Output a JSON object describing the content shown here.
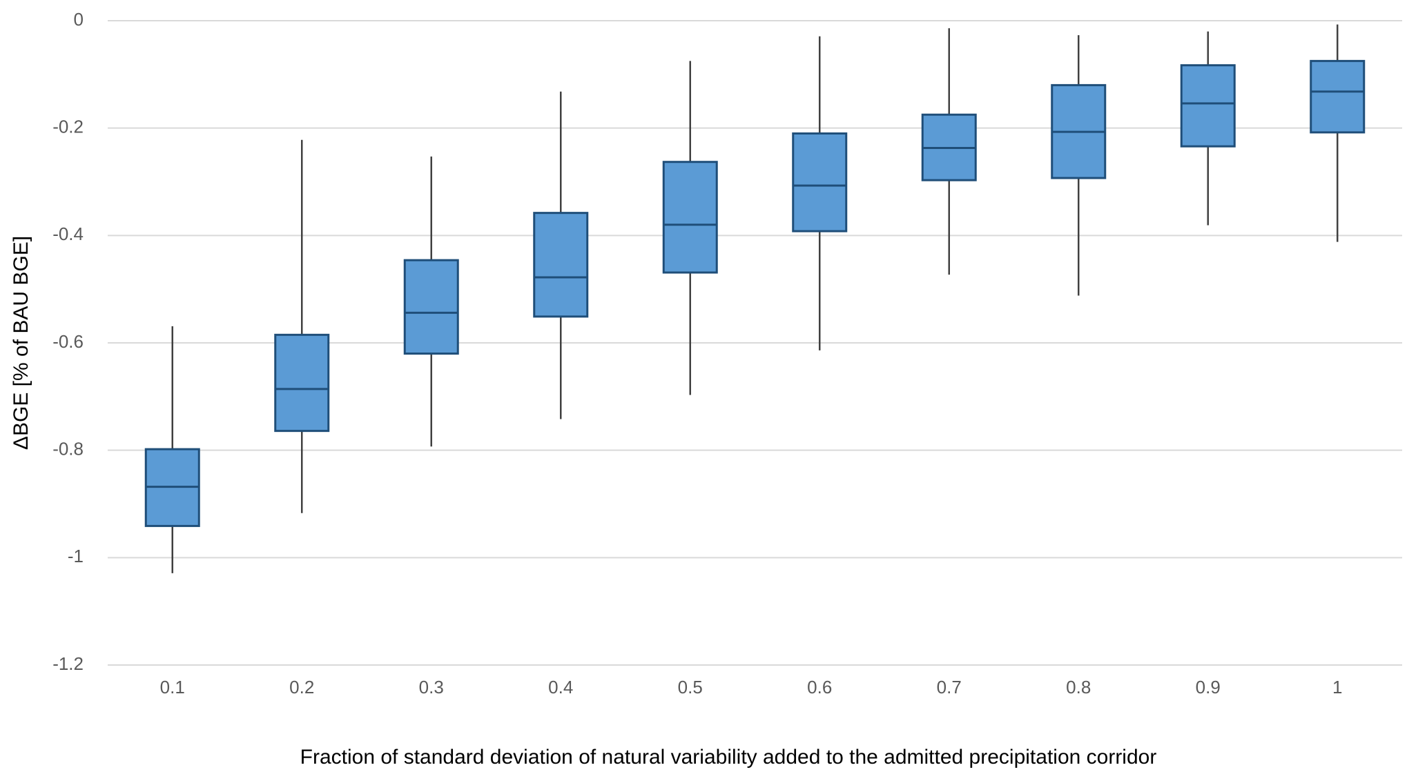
{
  "chart_data": {
    "type": "box",
    "x_label": "Fraction of standard deviation of natural variability added to the admitted precipitation corridor",
    "y_label": "ΔBGE [% of BAU BGE]",
    "categories": [
      "0.1",
      "0.2",
      "0.3",
      "0.4",
      "0.5",
      "0.6",
      "0.7",
      "0.8",
      "0.9",
      "1"
    ],
    "boxes": [
      {
        "whislo": -1.029,
        "q1": -0.941,
        "med": -0.868,
        "q3": -0.798,
        "whishi": -0.569
      },
      {
        "whislo": -0.917,
        "q1": -0.764,
        "med": -0.686,
        "q3": -0.585,
        "whishi": -0.222
      },
      {
        "whislo": -0.793,
        "q1": -0.62,
        "med": -0.544,
        "q3": -0.446,
        "whishi": -0.253
      },
      {
        "whislo": -0.742,
        "q1": -0.551,
        "med": -0.478,
        "q3": -0.358,
        "whishi": -0.132
      },
      {
        "whislo": -0.697,
        "q1": -0.469,
        "med": -0.38,
        "q3": -0.263,
        "whishi": -0.075
      },
      {
        "whislo": -0.614,
        "q1": -0.392,
        "med": -0.307,
        "q3": -0.21,
        "whishi": -0.029
      },
      {
        "whislo": -0.473,
        "q1": -0.297,
        "med": -0.237,
        "q3": -0.175,
        "whishi": -0.014
      },
      {
        "whislo": -0.512,
        "q1": -0.293,
        "med": -0.207,
        "q3": -0.12,
        "whishi": -0.027
      },
      {
        "whislo": -0.381,
        "q1": -0.234,
        "med": -0.154,
        "q3": -0.083,
        "whishi": -0.02
      },
      {
        "whislo": -0.412,
        "q1": -0.208,
        "med": -0.132,
        "q3": -0.075,
        "whishi": -0.007
      }
    ],
    "color": "#5b9bd5",
    "edge_color": "#1f4e79",
    "whisker_color": "#404040",
    "ylim": [
      -1.2,
      0
    ],
    "yticks": [
      0,
      -0.2,
      -0.4,
      -0.6,
      -0.8,
      -1,
      -1.2
    ],
    "grid": true
  }
}
